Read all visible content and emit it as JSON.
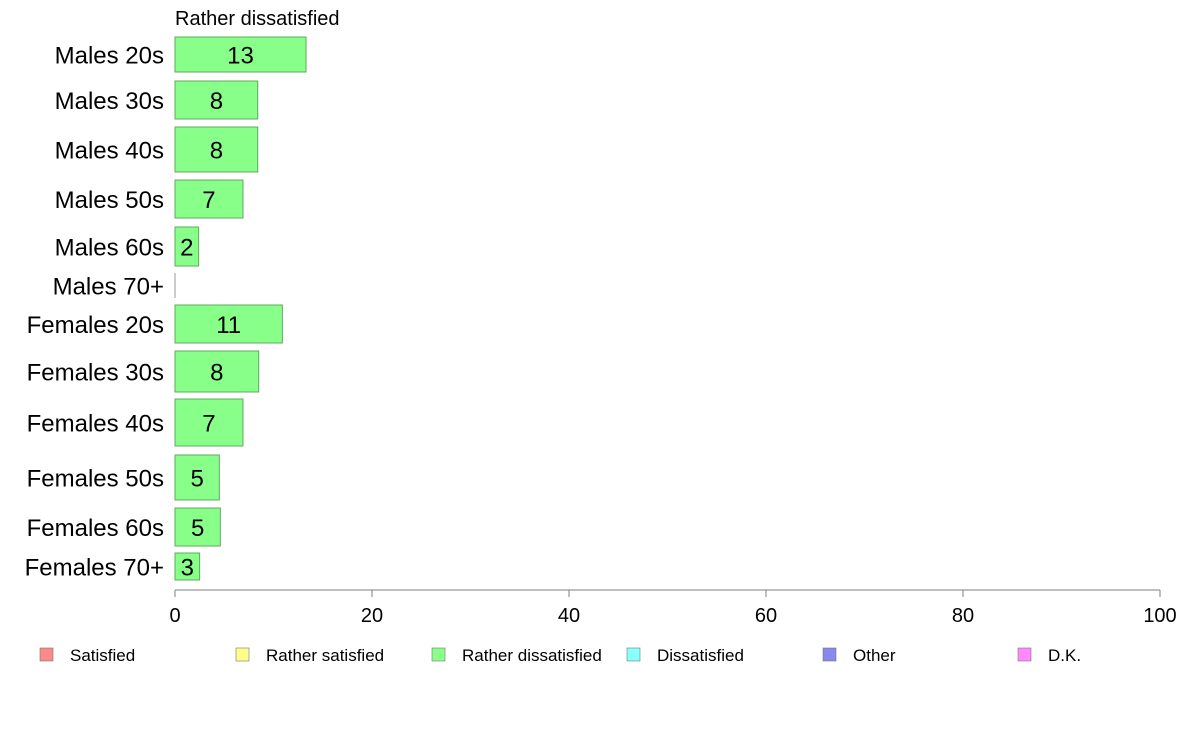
{
  "chart_data": {
    "type": "bar",
    "orientation": "horizontal",
    "title": "Rather dissatisfied",
    "categories": [
      "Males 20s",
      "Males 30s",
      "Males 40s",
      "Males 50s",
      "Males 60s",
      "Males 70+",
      "Females 20s",
      "Females 30s",
      "Females 40s",
      "Females 50s",
      "Females 60s",
      "Females 70+"
    ],
    "values": [
      13.3,
      8.4,
      8.4,
      6.9,
      2.4,
      0,
      10.9,
      8.5,
      6.9,
      4.5,
      4.6,
      2.5
    ],
    "labels": [
      "13",
      "8",
      "8",
      "7",
      "2",
      "",
      "11",
      "8",
      "7",
      "5",
      "5",
      "3"
    ],
    "xlim": [
      0,
      100
    ],
    "xticks": [
      "0",
      "20",
      "40",
      "60",
      "80",
      "100"
    ],
    "bar_color": "#88ff88",
    "bar_border": "#5fa85f",
    "grid": false,
    "legend_position": "bottom",
    "legend": [
      {
        "label": "Satisfied",
        "color": "#ff8888"
      },
      {
        "label": "Rather satisfied",
        "color": "#ffff88"
      },
      {
        "label": "Rather dissatisfied",
        "color": "#88ff88"
      },
      {
        "label": "Dissatisfied",
        "color": "#88ffff"
      },
      {
        "label": "Other",
        "color": "#8888ee"
      },
      {
        "label": "D.K.",
        "color": "#ff88ff"
      }
    ]
  }
}
